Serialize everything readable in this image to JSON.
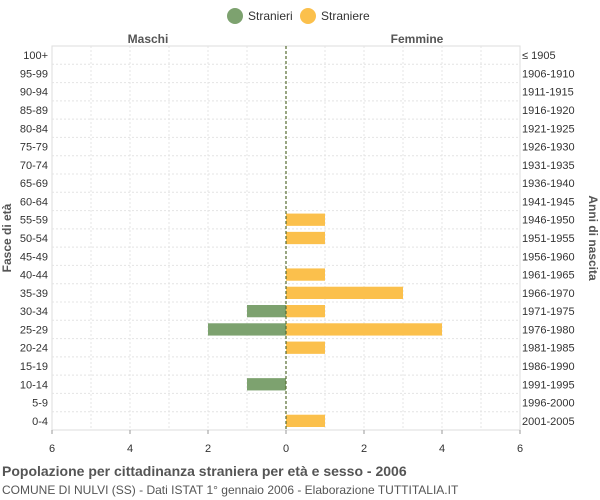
{
  "chart_data": {
    "type": "bar",
    "orientation": "horizontal-pyramid",
    "title": "Popolazione per cittadinanza straniera per età e sesso - 2006",
    "subtitle": "COMUNE DI NULVI (SS) - Dati ISTAT 1° gennaio 2006 - Elaborazione TUTTITALIA.IT",
    "left_header": "Maschi",
    "right_header": "Femmine",
    "ylabel_left": "Fasce di età",
    "ylabel_right": "Anni di nascita",
    "xlim": [
      -6,
      6
    ],
    "xticks": [
      -6,
      -4,
      -2,
      0,
      2,
      4,
      6
    ],
    "xtick_labels": [
      "6",
      "4",
      "2",
      "0",
      "2",
      "4",
      "6"
    ],
    "age_groups": [
      "100+",
      "95-99",
      "90-94",
      "85-89",
      "80-84",
      "75-79",
      "70-74",
      "65-69",
      "60-64",
      "55-59",
      "50-54",
      "45-49",
      "40-44",
      "35-39",
      "30-34",
      "25-29",
      "20-24",
      "15-19",
      "10-14",
      "5-9",
      "0-4"
    ],
    "birth_years": [
      "≤ 1905",
      "1906-1910",
      "1911-1915",
      "1916-1920",
      "1921-1925",
      "1926-1930",
      "1931-1935",
      "1936-1940",
      "1941-1945",
      "1946-1950",
      "1951-1955",
      "1956-1960",
      "1961-1965",
      "1966-1970",
      "1971-1975",
      "1976-1980",
      "1981-1985",
      "1986-1990",
      "1991-1995",
      "1996-2000",
      "2001-2005"
    ],
    "series": [
      {
        "name": "Stranieri",
        "color": "#7da26f",
        "side": "left",
        "values": [
          0,
          0,
          0,
          0,
          0,
          0,
          0,
          0,
          0,
          0,
          0,
          0,
          0,
          0,
          1,
          2,
          0,
          0,
          1,
          0,
          0
        ]
      },
      {
        "name": "Straniere",
        "color": "#fbc04c",
        "side": "right",
        "values": [
          0,
          0,
          0,
          0,
          0,
          0,
          0,
          0,
          0,
          1,
          1,
          0,
          1,
          3,
          1,
          4,
          1,
          0,
          0,
          0,
          1
        ]
      }
    ],
    "legend_position": "top-center",
    "grid": true
  }
}
